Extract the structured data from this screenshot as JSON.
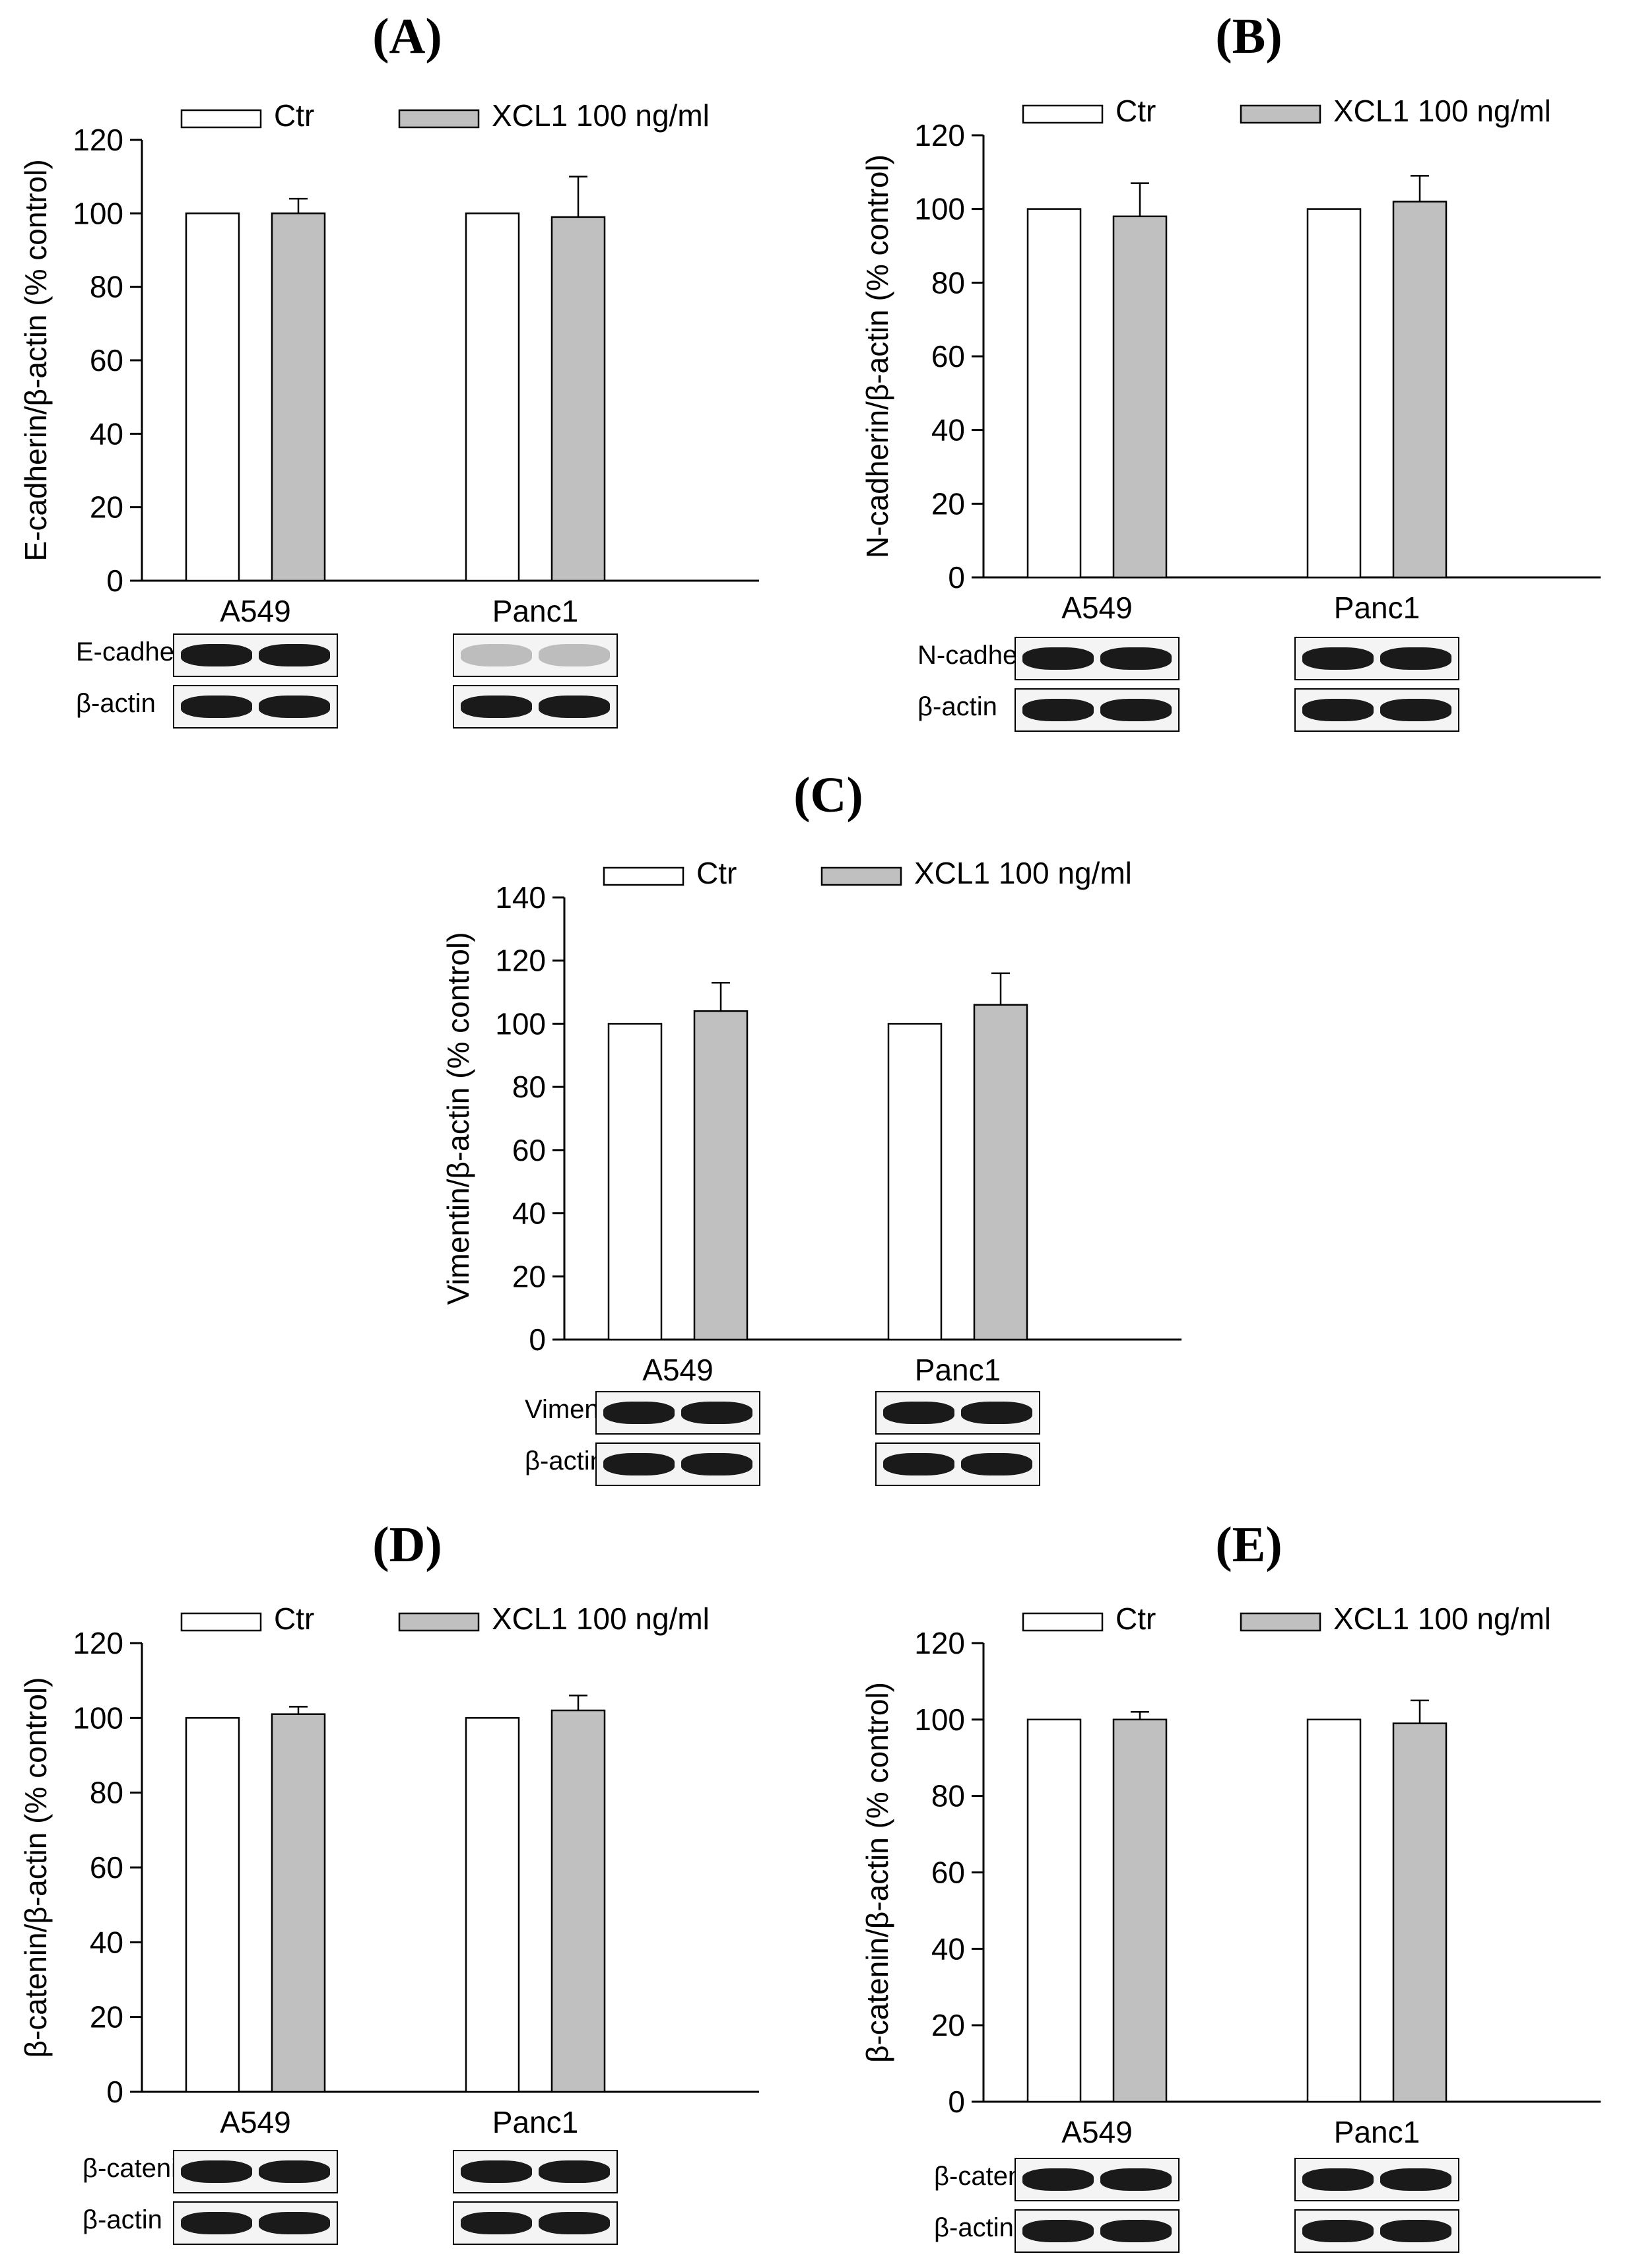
{
  "panels": [
    {
      "letter": "(A)",
      "chart_data": {
        "type": "bar",
        "categories": [
          "A549",
          "Panc1"
        ],
        "series": [
          {
            "name": "Ctr",
            "values": [
              100,
              100
            ],
            "errors": [
              0,
              0
            ]
          },
          {
            "name": "XCL1 100 ng/ml",
            "values": [
              100,
              99
            ],
            "errors": [
              4,
              11
            ]
          }
        ],
        "ylabel": "E-cadherin/β-actin (% control)",
        "ylim": [
          0,
          120
        ],
        "yticks": [
          0,
          20,
          40,
          60,
          80,
          100,
          120
        ],
        "grid": false,
        "legend": "top"
      },
      "blots": {
        "protein": "E-cadherin",
        "loading": "β-actin"
      }
    },
    {
      "letter": "(B)",
      "chart_data": {
        "type": "bar",
        "categories": [
          "A549",
          "Panc1"
        ],
        "series": [
          {
            "name": "Ctr",
            "values": [
              100,
              100
            ],
            "errors": [
              0,
              0
            ]
          },
          {
            "name": "XCL1 100 ng/ml",
            "values": [
              98,
              102
            ],
            "errors": [
              9,
              7
            ]
          }
        ],
        "ylabel": "N-cadherin/β-actin (% control)",
        "ylim": [
          0,
          120
        ],
        "yticks": [
          0,
          20,
          40,
          60,
          80,
          100,
          120
        ],
        "grid": false,
        "legend": "top"
      },
      "blots": {
        "protein": "N-cadherin",
        "loading": "β-actin"
      }
    },
    {
      "letter": "(C)",
      "chart_data": {
        "type": "bar",
        "categories": [
          "A549",
          "Panc1"
        ],
        "series": [
          {
            "name": "Ctr",
            "values": [
              100,
              100
            ],
            "errors": [
              0,
              0
            ]
          },
          {
            "name": "XCL1 100 ng/ml",
            "values": [
              104,
              106
            ],
            "errors": [
              9,
              10
            ]
          }
        ],
        "ylabel": "Vimentin/β-actin (% control)",
        "ylim": [
          0,
          140
        ],
        "yticks": [
          0,
          20,
          40,
          60,
          80,
          100,
          120,
          140
        ],
        "grid": false,
        "legend": "top"
      },
      "blots": {
        "protein": "Vimentin",
        "loading": "β-actin"
      }
    },
    {
      "letter": "(D)",
      "chart_data": {
        "type": "bar",
        "categories": [
          "A549",
          "Panc1"
        ],
        "series": [
          {
            "name": "Ctr",
            "values": [
              100,
              100
            ],
            "errors": [
              0,
              0
            ]
          },
          {
            "name": "XCL1 100 ng/ml",
            "values": [
              101,
              102
            ],
            "errors": [
              2,
              4
            ]
          }
        ],
        "ylabel": "β-catenin/β-actin (% control)",
        "ylim": [
          0,
          120
        ],
        "yticks": [
          0,
          20,
          40,
          60,
          80,
          100,
          120
        ],
        "grid": false,
        "legend": "top"
      },
      "blots": {
        "protein": "β-catenin",
        "loading": "β-actin"
      }
    },
    {
      "letter": "(E)",
      "chart_data": {
        "type": "bar",
        "categories": [
          "A549",
          "Panc1"
        ],
        "series": [
          {
            "name": "Ctr",
            "values": [
              100,
              100
            ],
            "errors": [
              0,
              0
            ]
          },
          {
            "name": "XCL1 100 ng/ml",
            "values": [
              100,
              99
            ],
            "errors": [
              2,
              6
            ]
          }
        ],
        "ylabel": "β-catenin/β-actin (% control)",
        "ylim": [
          0,
          120
        ],
        "yticks": [
          0,
          20,
          40,
          60,
          80,
          100,
          120
        ],
        "grid": false,
        "legend": "top"
      },
      "blots": {
        "protein": "β-catenin",
        "loading": "β-actin"
      }
    }
  ],
  "colors": {
    "ctr_fill": "#ffffff",
    "xcl1_fill": "#c0c0c0",
    "axis": "#000000",
    "band": "#1a1a1a"
  }
}
